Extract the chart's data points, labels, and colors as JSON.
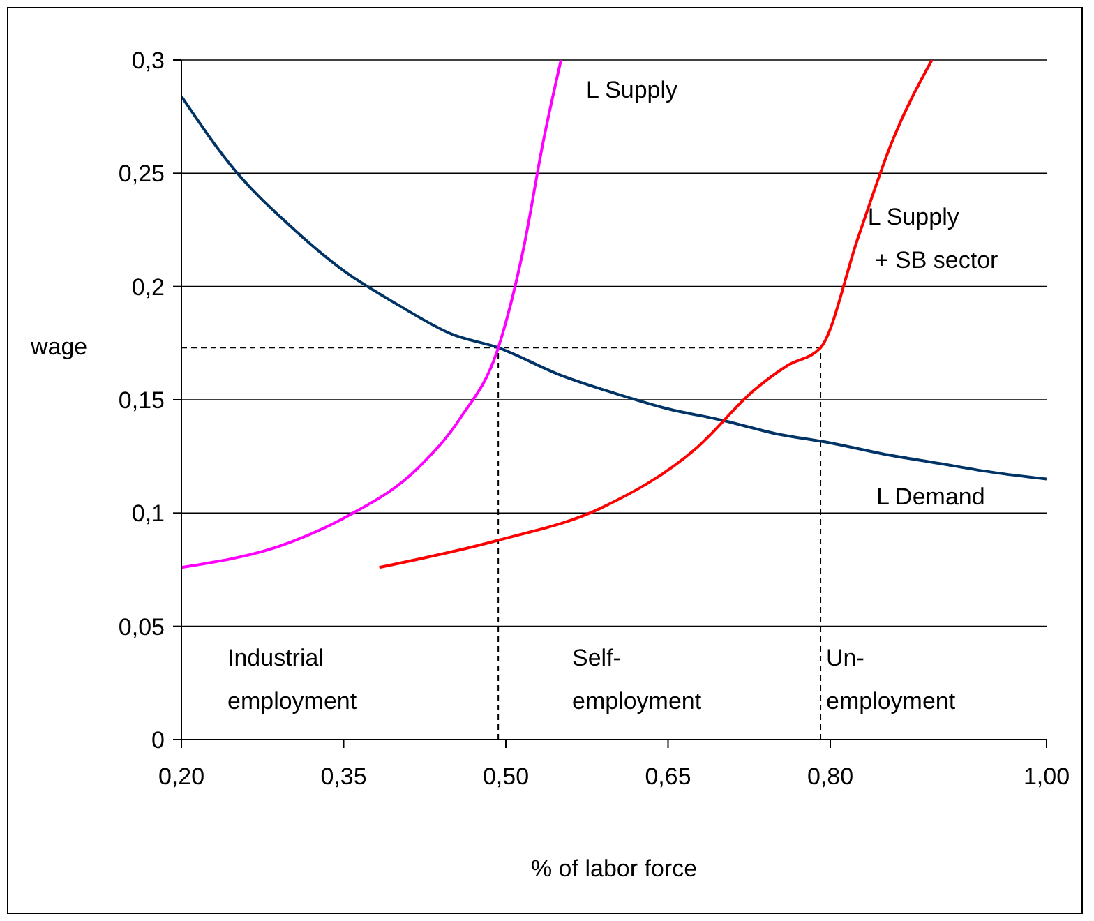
{
  "chart_data": {
    "type": "line",
    "xlabel": "% of labor force",
    "ylabel": "wage",
    "xlim": [
      0.2,
      1.0
    ],
    "ylim": [
      0,
      0.3
    ],
    "xticks": [
      {
        "value": 0.2,
        "label": "0,20"
      },
      {
        "value": 0.35,
        "label": "0,35"
      },
      {
        "value": 0.5,
        "label": "0,50"
      },
      {
        "value": 0.65,
        "label": "0,65"
      },
      {
        "value": 0.8,
        "label": "0,80"
      },
      {
        "value": 1.0,
        "label": "1,00"
      }
    ],
    "yticks": [
      0,
      {
        "value": 0.05,
        "label": "0,05"
      },
      {
        "value": 0.1,
        "label": "0,1"
      },
      {
        "value": 0.15,
        "label": "0,15"
      },
      {
        "value": 0.2,
        "label": "0,2"
      },
      {
        "value": 0.25,
        "label": "0,25"
      },
      {
        "value": 0.3,
        "label": "0,3"
      }
    ],
    "grid": "y",
    "legend": false,
    "marker": "none",
    "line_style": "solid",
    "series": [
      {
        "name": "L Demand",
        "color": "#003366",
        "x": [
          0.2,
          0.25,
          0.3,
          0.35,
          0.4,
          0.45,
          0.493,
          0.55,
          0.6,
          0.65,
          0.7,
          0.75,
          0.8,
          0.85,
          0.9,
          0.95,
          1.0
        ],
        "values": [
          0.284,
          0.251,
          0.227,
          0.207,
          0.192,
          0.179,
          0.173,
          0.161,
          0.153,
          0.146,
          0.141,
          0.135,
          0.131,
          0.126,
          0.122,
          0.118,
          0.115
        ]
      },
      {
        "name": "L Supply",
        "color": "#ff00ff",
        "x": [
          0.2,
          0.3,
          0.355,
          0.419,
          0.458,
          0.493,
          0.516,
          0.535,
          0.551
        ],
        "values": [
          0.076,
          0.087,
          0.099,
          0.12,
          0.142,
          0.173,
          0.216,
          0.265,
          0.3
        ]
      },
      {
        "name": "L Supply\n+ SB sector",
        "color": "#ff0000",
        "x": [
          0.383,
          0.493,
          0.587,
          0.677,
          0.729,
          0.76,
          0.791,
          0.826,
          0.858,
          0.894
        ],
        "values": [
          0.076,
          0.088,
          0.102,
          0.129,
          0.154,
          0.165,
          0.173,
          0.222,
          0.265,
          0.3
        ]
      }
    ],
    "ref_lines": [
      {
        "axis": "x",
        "value": 0.493,
        "color": "#000000",
        "line_style": "dashed"
      },
      {
        "axis": "x",
        "value": 0.791,
        "color": "#000000",
        "line_style": "dashed"
      },
      {
        "axis": "y",
        "value": 0.173,
        "color": "#000000",
        "line_style": "dashed"
      }
    ],
    "annotations": [
      "Industrial employment",
      "Self-employment",
      "Un-employment"
    ]
  }
}
